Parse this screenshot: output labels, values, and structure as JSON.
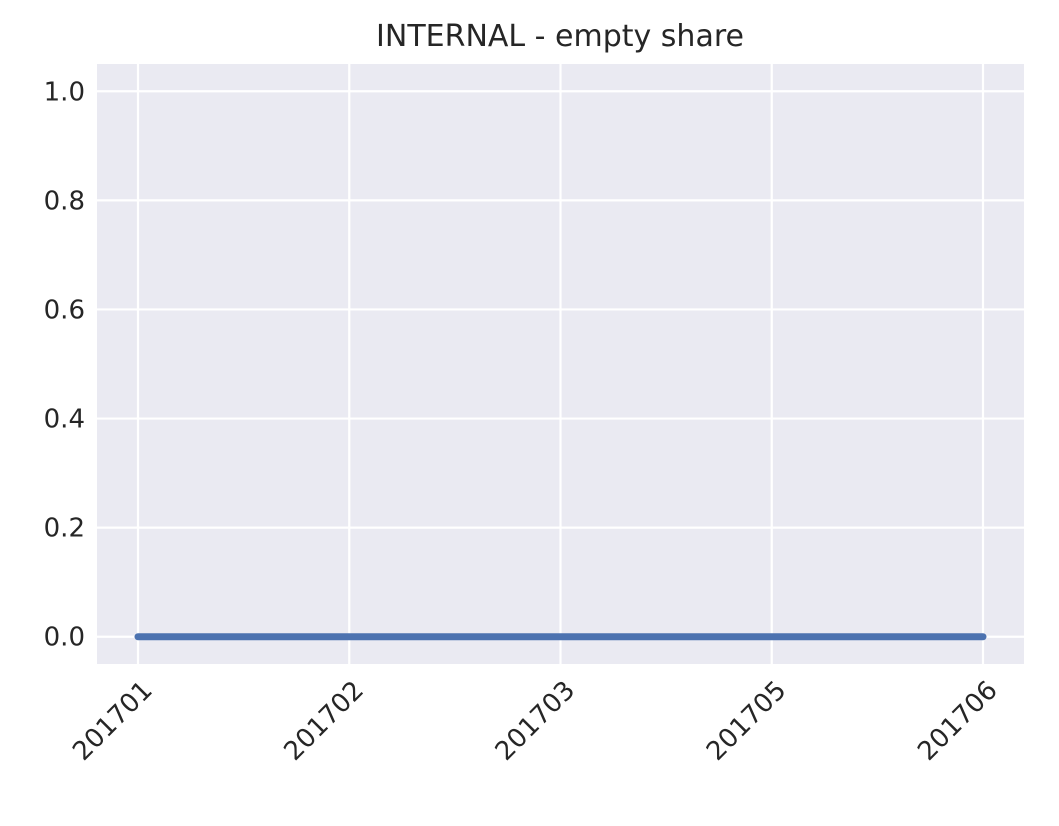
{
  "chart_data": {
    "type": "line",
    "title": "INTERNAL - empty share",
    "xlabel": "",
    "ylabel": "",
    "categories": [
      "201701",
      "201702",
      "201703",
      "201705",
      "201706"
    ],
    "series": [
      {
        "values": [
          0,
          0,
          0,
          0,
          0
        ],
        "color": "#4c72b0"
      }
    ],
    "ylim": [
      -0.05,
      1.05
    ],
    "yticks": [
      "0.0",
      "0.2",
      "0.4",
      "0.6",
      "0.8",
      "1.0"
    ],
    "grid": true,
    "plot_background": "#eaeaf2",
    "grid_color": "#ffffff"
  }
}
